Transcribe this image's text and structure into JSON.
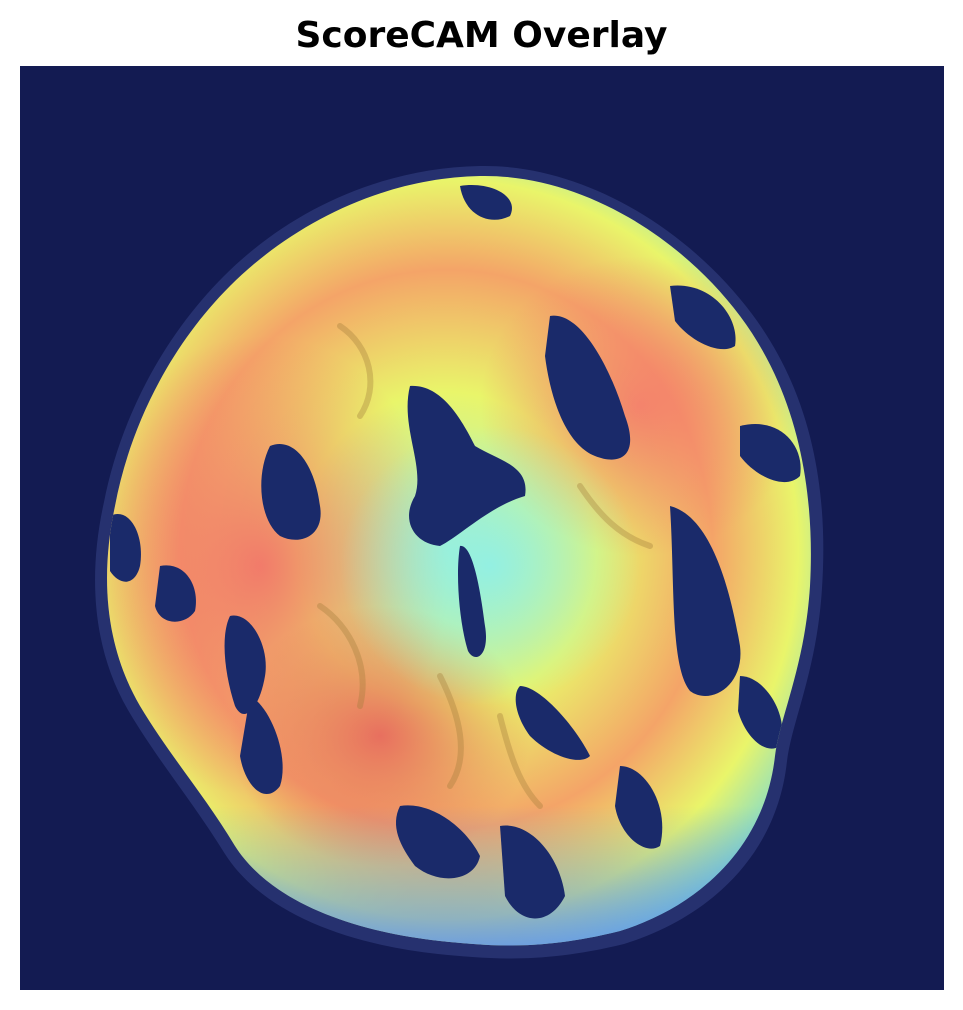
{
  "figure": {
    "title": "ScoreCAM Overlay"
  },
  "colors": {
    "background": "#131b52",
    "heat_low": "#5b8cf0",
    "heat_mid": "#e9f56a",
    "heat_high": "#f2746a",
    "tissue_gray": "#3a4684"
  },
  "image": {
    "description_tag": "brain-mri-scorecam-heatmap-overlay"
  }
}
